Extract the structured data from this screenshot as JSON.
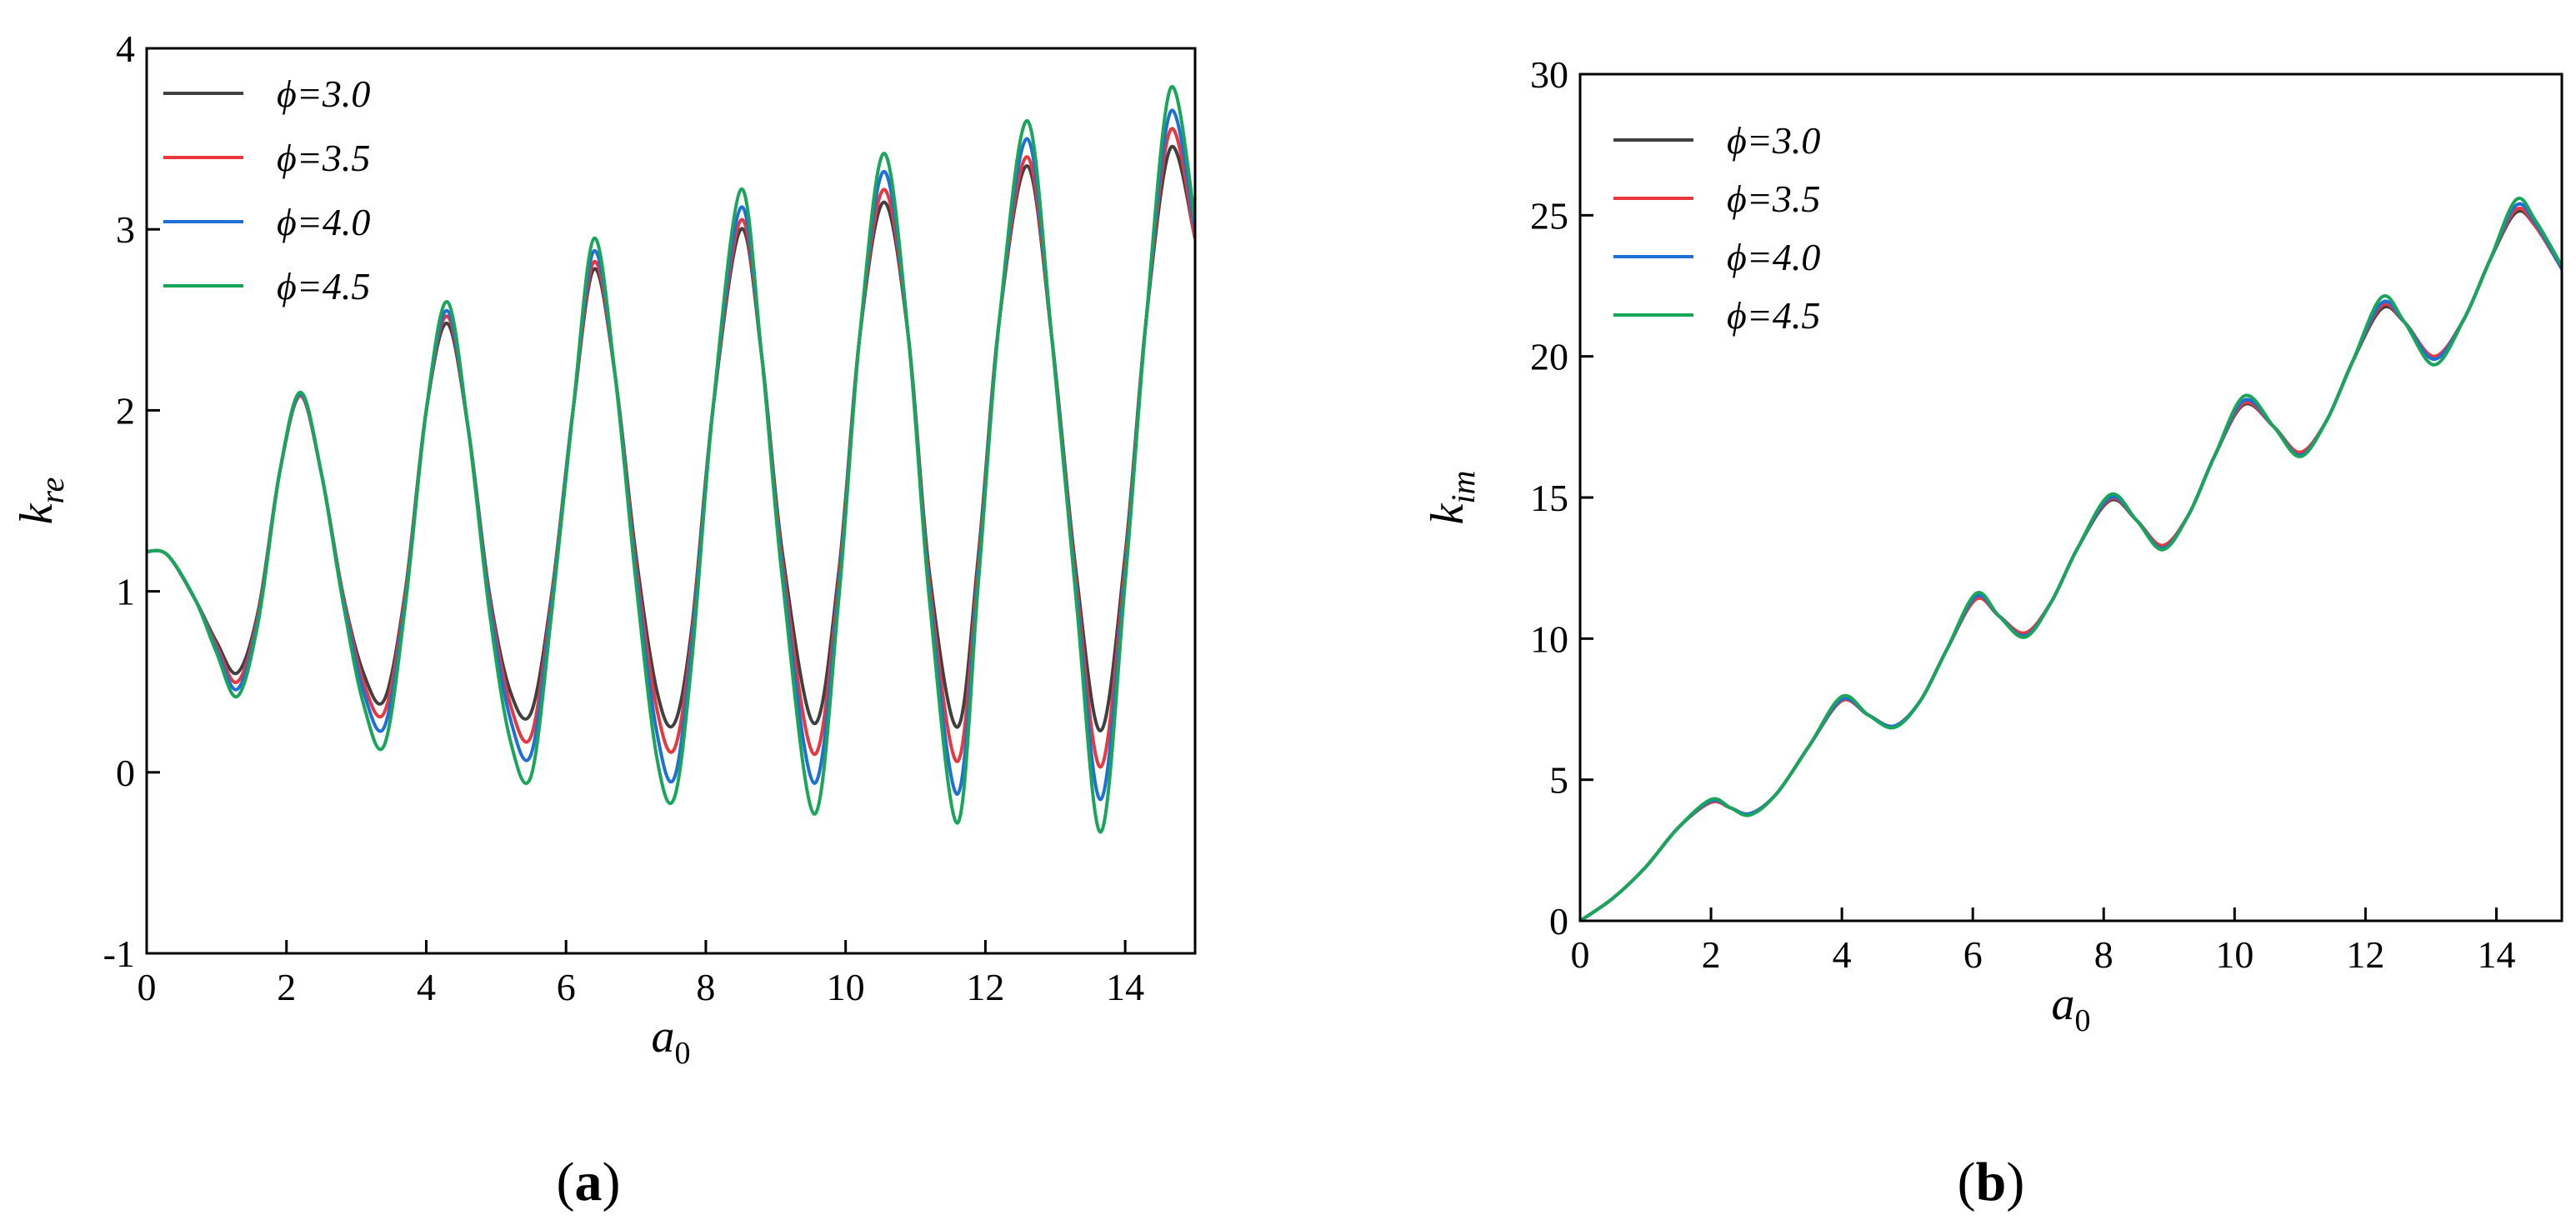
{
  "colors": {
    "phi_3_0": "#404040",
    "phi_3_5": "#e8383d",
    "phi_4_0": "#1f6fd6",
    "phi_4_5": "#1aa65a"
  },
  "chart_data": [
    {
      "type": "line",
      "caption": "a",
      "xlabel": "a",
      "xlabel_sub": "0",
      "ylabel": "k",
      "ylabel_sub": "re",
      "xlim": [
        0,
        15
      ],
      "ylim": [
        -1,
        4
      ],
      "x_ticks": [
        0,
        2,
        4,
        6,
        8,
        10,
        12,
        14
      ],
      "y_ticks": [
        -1,
        0,
        1,
        2,
        3,
        4
      ],
      "x_tick_labels": [
        "0",
        "2",
        "4",
        "6",
        "8",
        "10",
        "12",
        "14"
      ],
      "y_tick_labels": [
        "-1",
        "0",
        "1",
        "2",
        "3",
        "4"
      ],
      "legend_position": "top-left",
      "grid": false,
      "x": [
        0,
        0.3,
        0.7,
        1.0,
        1.3,
        1.6,
        1.9,
        2.2,
        2.5,
        2.8,
        3.1,
        3.4,
        3.7,
        4.0,
        4.3,
        4.6,
        4.9,
        5.2,
        5.5,
        5.8,
        6.1,
        6.4,
        6.7,
        7.0,
        7.3,
        7.55,
        7.8,
        8.1,
        8.5,
        8.8,
        9.1,
        9.55,
        9.9,
        10.2,
        10.55,
        10.9,
        11.2,
        11.6,
        11.9,
        12.2,
        12.6,
        12.95,
        13.3,
        13.65,
        14.0,
        14.3,
        14.65,
        15.0
      ],
      "series": [
        {
          "name": "ϕ=3.0",
          "color_key": "phi_3_0",
          "values": [
            1.22,
            1.2,
            0.95,
            0.72,
            0.55,
            0.9,
            1.65,
            2.08,
            1.65,
            1.0,
            0.55,
            0.4,
            1.0,
            2.0,
            2.48,
            1.9,
            1.0,
            0.45,
            0.33,
            1.0,
            2.0,
            2.78,
            2.2,
            1.2,
            0.45,
            0.27,
            0.8,
            2.0,
            3.0,
            2.3,
            1.2,
            0.27,
            1.1,
            2.4,
            3.15,
            2.4,
            1.1,
            0.25,
            1.2,
            2.5,
            3.35,
            2.4,
            1.1,
            0.23,
            1.2,
            2.5,
            3.45,
            2.95
          ]
        },
        {
          "name": "ϕ=3.5",
          "color_key": "phi_3_5",
          "values": [
            1.22,
            1.2,
            0.95,
            0.7,
            0.5,
            0.88,
            1.65,
            2.08,
            1.65,
            1.0,
            0.5,
            0.33,
            0.98,
            2.0,
            2.52,
            1.9,
            0.98,
            0.38,
            0.2,
            0.98,
            2.0,
            2.82,
            2.2,
            1.15,
            0.35,
            0.13,
            0.75,
            2.0,
            3.05,
            2.3,
            1.15,
            0.1,
            1.05,
            2.4,
            3.22,
            2.4,
            1.05,
            0.06,
            1.15,
            2.5,
            3.4,
            2.4,
            1.05,
            0.03,
            1.15,
            2.5,
            3.55,
            2.95
          ]
        },
        {
          "name": "ϕ=4.0",
          "color_key": "phi_4_0",
          "values": [
            1.22,
            1.2,
            0.95,
            0.68,
            0.46,
            0.86,
            1.65,
            2.09,
            1.65,
            0.98,
            0.45,
            0.25,
            0.95,
            2.0,
            2.55,
            1.9,
            0.95,
            0.3,
            0.1,
            0.95,
            2.0,
            2.88,
            2.2,
            1.1,
            0.22,
            -0.03,
            0.7,
            2.0,
            3.12,
            2.3,
            1.1,
            -0.06,
            1.0,
            2.4,
            3.32,
            2.4,
            1.0,
            -0.12,
            1.1,
            2.5,
            3.5,
            2.4,
            1.0,
            -0.15,
            1.1,
            2.5,
            3.65,
            3.0
          ]
        },
        {
          "name": "ϕ=4.5",
          "color_key": "phi_4_5",
          "values": [
            1.22,
            1.2,
            0.95,
            0.66,
            0.42,
            0.84,
            1.65,
            2.1,
            1.65,
            0.96,
            0.38,
            0.15,
            0.92,
            2.0,
            2.6,
            1.9,
            0.9,
            0.18,
            -0.02,
            0.9,
            2.0,
            2.95,
            2.2,
            1.05,
            0.08,
            -0.14,
            0.62,
            2.0,
            3.22,
            2.3,
            1.05,
            -0.23,
            0.95,
            2.4,
            3.42,
            2.4,
            0.95,
            -0.28,
            1.05,
            2.5,
            3.6,
            2.4,
            0.95,
            -0.33,
            1.05,
            2.5,
            3.78,
            3.05
          ]
        }
      ]
    },
    {
      "type": "line",
      "caption": "b",
      "xlabel": "a",
      "xlabel_sub": "0",
      "ylabel": "k",
      "ylabel_sub": "im",
      "xlim": [
        0,
        15
      ],
      "ylim": [
        0,
        30
      ],
      "x_ticks": [
        0,
        2,
        4,
        6,
        8,
        10,
        12,
        14
      ],
      "y_ticks": [
        0,
        5,
        10,
        15,
        20,
        25,
        30
      ],
      "x_tick_labels": [
        "0",
        "2",
        "4",
        "6",
        "8",
        "10",
        "12",
        "14"
      ],
      "y_tick_labels": [
        "0",
        "5",
        "10",
        "15",
        "20",
        "25",
        "30"
      ],
      "legend_position": "top-left",
      "grid": false,
      "x": [
        0,
        0.5,
        1.0,
        1.5,
        2.0,
        2.3,
        2.6,
        3.0,
        3.5,
        4.0,
        4.4,
        4.8,
        5.2,
        5.6,
        6.05,
        6.4,
        6.8,
        7.2,
        7.6,
        8.1,
        8.5,
        8.9,
        9.3,
        9.7,
        10.15,
        10.6,
        11.0,
        11.4,
        11.8,
        12.25,
        12.6,
        13.05,
        13.5,
        13.9,
        14.3,
        14.6,
        15.0
      ],
      "series": [
        {
          "name": "ϕ=3.0",
          "color_key": "phi_3_0",
          "values": [
            0,
            0.8,
            1.9,
            3.3,
            4.2,
            4.0,
            3.8,
            4.5,
            6.2,
            7.8,
            7.3,
            6.9,
            7.8,
            9.6,
            11.4,
            10.8,
            10.2,
            11.3,
            13.2,
            14.9,
            14.2,
            13.3,
            14.4,
            16.5,
            18.3,
            17.5,
            16.6,
            17.7,
            19.8,
            21.7,
            21.2,
            20.0,
            21.3,
            23.4,
            25.1,
            24.6,
            23.1
          ]
        },
        {
          "name": "ϕ=3.5",
          "color_key": "phi_3_5",
          "values": [
            0,
            0.8,
            1.9,
            3.3,
            4.2,
            4.0,
            3.8,
            4.5,
            6.2,
            7.8,
            7.3,
            6.9,
            7.8,
            9.6,
            11.4,
            10.8,
            10.2,
            11.3,
            13.2,
            14.95,
            14.2,
            13.3,
            14.4,
            16.5,
            18.35,
            17.5,
            16.6,
            17.7,
            19.8,
            21.8,
            21.2,
            20.0,
            21.3,
            23.4,
            25.2,
            24.6,
            23.1
          ]
        },
        {
          "name": "ϕ=4.0",
          "color_key": "phi_4_0",
          "values": [
            0,
            0.8,
            1.9,
            3.3,
            4.25,
            4.0,
            3.8,
            4.5,
            6.2,
            7.85,
            7.3,
            6.9,
            7.8,
            9.6,
            11.5,
            10.8,
            10.1,
            11.3,
            13.2,
            15.0,
            14.2,
            13.2,
            14.4,
            16.5,
            18.45,
            17.5,
            16.5,
            17.7,
            19.8,
            21.9,
            21.2,
            19.9,
            21.3,
            23.4,
            25.35,
            24.7,
            23.1
          ]
        },
        {
          "name": "ϕ=4.5",
          "color_key": "phi_4_5",
          "values": [
            0,
            0.8,
            1.9,
            3.3,
            4.3,
            4.0,
            3.75,
            4.5,
            6.2,
            7.95,
            7.3,
            6.85,
            7.8,
            9.6,
            11.6,
            10.8,
            10.05,
            11.3,
            13.2,
            15.1,
            14.2,
            13.15,
            14.4,
            16.5,
            18.6,
            17.5,
            16.45,
            17.7,
            19.8,
            22.1,
            21.2,
            19.7,
            21.3,
            23.4,
            25.55,
            24.8,
            23.2
          ]
        }
      ]
    }
  ]
}
